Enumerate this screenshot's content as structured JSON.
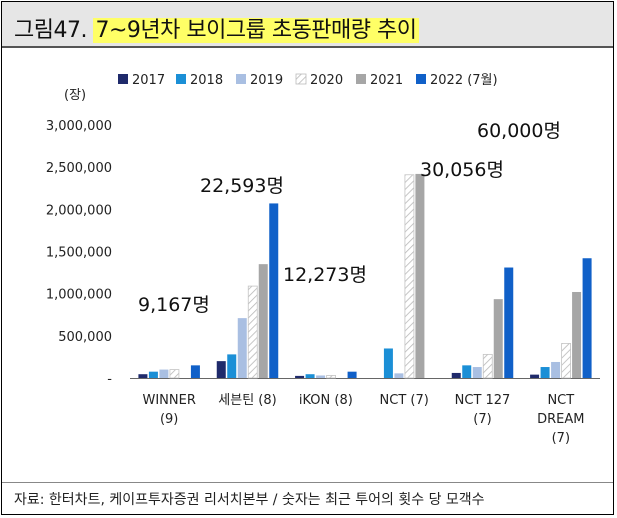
{
  "title": {
    "prefix": "그림47. ",
    "highlight": "7~9년차 보이그룹 초동판매량 추이"
  },
  "unit_label": "(장)",
  "source": "자료: 한터차트, 케이프투자증권 리서치본부 / 숫자는 최근 투어의 횟수 당 모객수",
  "colors": {
    "2017": "#1f2a6b",
    "2018": "#1b8fd6",
    "2019": "#a9bfe2",
    "2020": "#ffffff",
    "2021": "#a6a6a6",
    "2022 (7월)": "#1060c8"
  },
  "chart_data": {
    "type": "bar",
    "ylim": [
      0,
      3000000
    ],
    "yticks": [
      "-",
      "500,000",
      "1,000,000",
      "1,500,000",
      "2,000,000",
      "2,500,000",
      "3,000,000"
    ],
    "categories": [
      "WINNER\n(9)",
      "세븐틴 (8)",
      "iKON (8)",
      "NCT (7)",
      "NCT 127\n(7)",
      "NCT\nDREAM\n(7)"
    ],
    "legend_position": "top",
    "series": [
      {
        "name": "2017",
        "values": [
          45000,
          200000,
          25000,
          0,
          60000,
          40000
        ]
      },
      {
        "name": "2018",
        "values": [
          75000,
          280000,
          45000,
          350000,
          150000,
          130000
        ]
      },
      {
        "name": "2019",
        "values": [
          100000,
          710000,
          30000,
          55000,
          130000,
          190000
        ]
      },
      {
        "name": "2020",
        "values": [
          100000,
          1090000,
          30000,
          2410000,
          280000,
          410000
        ]
      },
      {
        "name": "2021",
        "values": [
          0,
          1350000,
          0,
          2420000,
          935000,
          1020000
        ]
      },
      {
        "name": "2022 (7월)",
        "values": [
          150000,
          2070000,
          75000,
          0,
          1310000,
          1420000
        ]
      }
    ],
    "annotations": [
      "9,167명",
      "22,593명",
      "12,273명",
      "30,056명",
      "60,000명"
    ]
  }
}
